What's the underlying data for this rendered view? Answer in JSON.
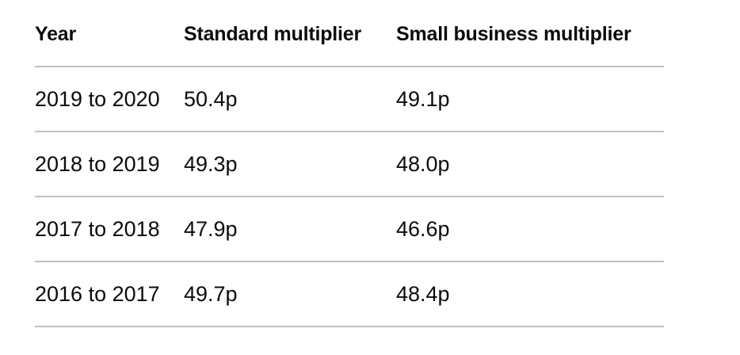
{
  "table": {
    "headers": [
      "Year",
      "Standard multiplier",
      "Small business multiplier"
    ],
    "rows": [
      [
        "2019 to 2020",
        "50.4p",
        "49.1p"
      ],
      [
        "2018 to 2019",
        "49.3p",
        "48.0p"
      ],
      [
        "2017 to 2018",
        "47.9p",
        "46.6p"
      ],
      [
        "2016 to 2017",
        "49.7p",
        "48.4p"
      ]
    ]
  }
}
